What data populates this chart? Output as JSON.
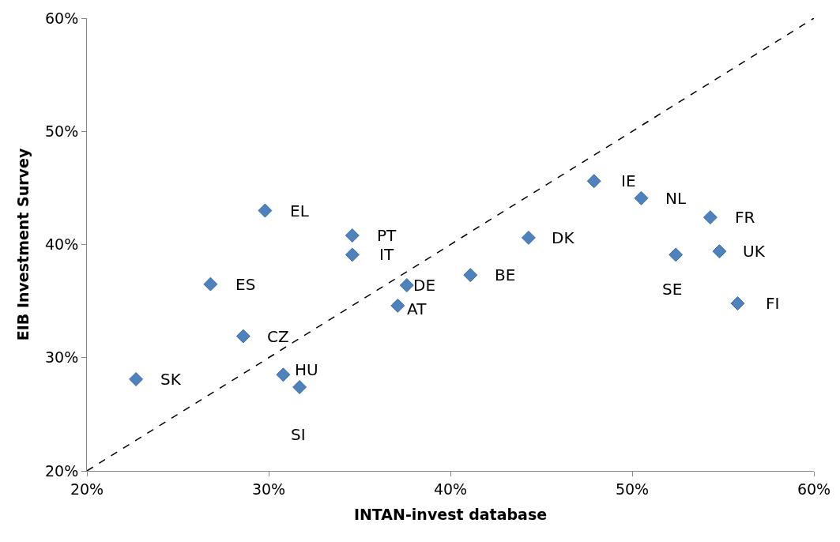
{
  "chart_data": {
    "type": "scatter",
    "xlabel": "INTAN-invest database",
    "ylabel": "EIB Investment Survey",
    "xlim": [
      20,
      60
    ],
    "ylim": [
      20,
      60
    ],
    "xticks": [
      {
        "value": 20,
        "label": "20%"
      },
      {
        "value": 30,
        "label": "30%"
      },
      {
        "value": 40,
        "label": "40%"
      },
      {
        "value": 50,
        "label": "50%"
      },
      {
        "value": 60,
        "label": "60%"
      }
    ],
    "yticks": [
      {
        "value": 20,
        "label": "20%"
      },
      {
        "value": 30,
        "label": "30%"
      },
      {
        "value": 40,
        "label": "40%"
      },
      {
        "value": 50,
        "label": "50%"
      },
      {
        "value": 60,
        "label": "60%"
      }
    ],
    "grid": false,
    "series": [
      {
        "color": "#4f81bd",
        "marker": "diamond",
        "x": [
          22.7,
          26.8,
          28.6,
          29.8,
          30.8,
          31.7,
          34.6,
          34.6,
          37.1,
          37.6,
          41.1,
          44.3,
          47.9,
          50.5,
          54.3,
          52.4,
          54.8,
          55.8
        ],
        "values": [
          28.1,
          36.5,
          31.9,
          43.0,
          28.5,
          27.4,
          40.8,
          39.1,
          34.6,
          36.4,
          37.3,
          40.6,
          45.6,
          44.1,
          42.4,
          39.1,
          39.4,
          34.8
        ]
      },
      {
        "type": "line",
        "color": "#000000",
        "line_style": "dashed",
        "x": [
          20,
          60
        ],
        "values": [
          20,
          60
        ]
      }
    ],
    "annotations": [
      {
        "text": "SK",
        "x": 22.7,
        "y": 28.1
      },
      {
        "text": "ES",
        "x": 26.8,
        "y": 36.5
      },
      {
        "text": "CZ",
        "x": 28.6,
        "y": 31.9
      },
      {
        "text": "EL",
        "x": 29.8,
        "y": 43.0
      },
      {
        "text": "HU",
        "x": 30.8,
        "y": 28.5
      },
      {
        "text": "SI",
        "x": 31.7,
        "y": 27.4
      },
      {
        "text": "PT",
        "x": 34.6,
        "y": 40.8
      },
      {
        "text": "IT",
        "x": 34.6,
        "y": 39.1
      },
      {
        "text": "AT",
        "x": 37.1,
        "y": 34.6
      },
      {
        "text": "DE",
        "x": 37.6,
        "y": 36.4
      },
      {
        "text": "BE",
        "x": 41.1,
        "y": 37.3
      },
      {
        "text": "DK",
        "x": 44.3,
        "y": 40.6
      },
      {
        "text": "IE",
        "x": 47.9,
        "y": 45.6
      },
      {
        "text": "NL",
        "x": 50.5,
        "y": 44.1
      },
      {
        "text": "FR",
        "x": 54.3,
        "y": 42.4
      },
      {
        "text": "SE",
        "x": 52.4,
        "y": 39.1
      },
      {
        "text": "UK",
        "x": 54.8,
        "y": 39.4
      },
      {
        "text": "FI",
        "x": 55.8,
        "y": 34.8
      }
    ]
  }
}
